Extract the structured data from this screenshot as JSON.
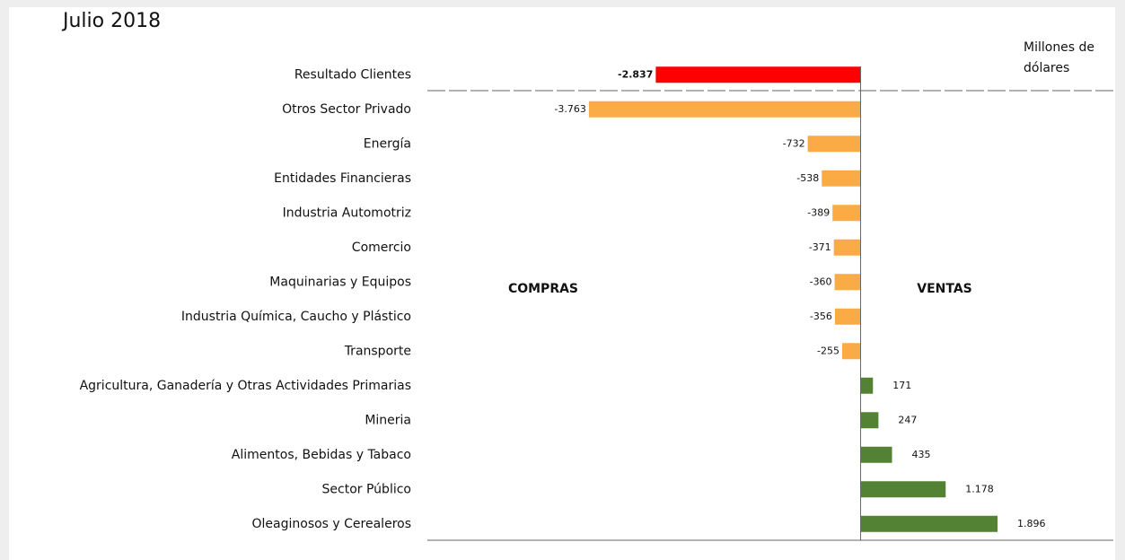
{
  "chart_data": {
    "type": "hbar",
    "title": "Julio 2018",
    "unit_label": "Millones de dólares",
    "annotations": [
      "COMPRAS",
      "VENTAS"
    ],
    "categories": [
      "Resultado Clientes",
      "Otros Sector Privado",
      "Energía",
      "Entidades Financieras",
      "Industria Automotriz",
      "Comercio",
      "Maquinarias y Equipos",
      "Industria Química, Caucho y Plástico",
      "Transporte",
      "Agricultura, Ganadería y Otras Actividades Primarias",
      "Mineria",
      "Alimentos, Bebidas y Tabaco",
      "Sector Público",
      "Oleaginosos y Cerealeros"
    ],
    "values": [
      -2837,
      -3763,
      -732,
      -538,
      -389,
      -371,
      -360,
      -356,
      -255,
      171,
      247,
      435,
      1178,
      1896
    ],
    "value_labels": [
      "-2.837",
      "-3.763",
      "-732",
      "-538",
      "-389",
      "-371",
      "-360",
      "-356",
      "-255",
      "171",
      "247",
      "435",
      "1.178",
      "1.896"
    ],
    "colors": [
      "#ff0000",
      "#fbab46",
      "#fbab46",
      "#fbab46",
      "#fbab46",
      "#fbab46",
      "#fbab46",
      "#fbab46",
      "#fbab46",
      "#548235",
      "#548235",
      "#548235",
      "#548235",
      "#548235"
    ],
    "xlim": [
      -6000,
      3500
    ]
  }
}
